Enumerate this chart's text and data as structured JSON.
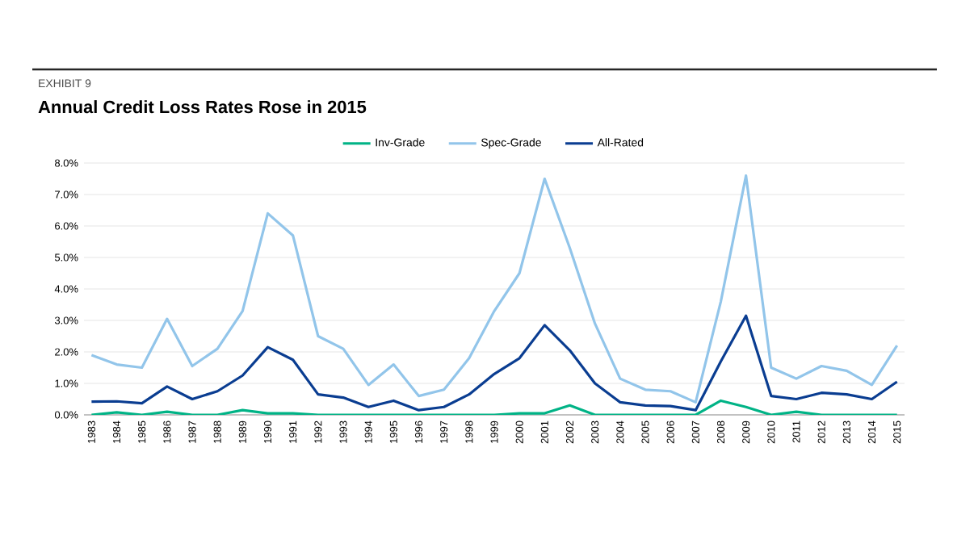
{
  "chart_data": {
    "type": "line",
    "title": "Annual Credit Loss Rates Rose in 2015",
    "annotations": [
      "EXHIBIT 9"
    ],
    "categories": [
      "1983",
      "1984",
      "1985",
      "1986",
      "1987",
      "1988",
      "1989",
      "1990",
      "1991",
      "1992",
      "1993",
      "1994",
      "1995",
      "1996",
      "1997",
      "1998",
      "1999",
      "2000",
      "2001",
      "2002",
      "2003",
      "2004",
      "2005",
      "2006",
      "2007",
      "2008",
      "2009",
      "2010",
      "2011",
      "2012",
      "2013",
      "2014",
      "2015"
    ],
    "series": [
      {
        "name": "Inv-Grade",
        "color": "#00b386",
        "values": [
          0.0,
          0.08,
          0.0,
          0.1,
          0.0,
          0.0,
          0.15,
          0.05,
          0.05,
          0.0,
          0.0,
          0.0,
          0.0,
          0.0,
          0.0,
          0.0,
          0.0,
          0.05,
          0.05,
          0.3,
          0.0,
          0.0,
          0.0,
          0.0,
          0.0,
          0.45,
          0.25,
          0.0,
          0.1,
          0.0,
          0.0,
          0.0,
          0.0
        ]
      },
      {
        "name": "Spec-Grade",
        "color": "#92c5ea",
        "values": [
          1.9,
          1.6,
          1.5,
          3.05,
          1.55,
          2.1,
          3.3,
          6.4,
          5.7,
          2.5,
          2.1,
          0.95,
          1.6,
          0.6,
          0.8,
          1.8,
          3.3,
          4.5,
          7.5,
          5.3,
          2.9,
          1.15,
          0.8,
          0.75,
          0.4,
          3.6,
          7.6,
          1.5,
          1.15,
          1.55,
          1.4,
          0.95,
          2.2
        ]
      },
      {
        "name": "All-Rated",
        "color": "#0a3d91",
        "values": [
          0.42,
          0.43,
          0.37,
          0.9,
          0.5,
          0.75,
          1.25,
          2.15,
          1.75,
          0.65,
          0.55,
          0.25,
          0.45,
          0.15,
          0.25,
          0.65,
          1.3,
          1.8,
          2.85,
          2.05,
          1.0,
          0.4,
          0.3,
          0.28,
          0.15,
          1.7,
          3.15,
          0.6,
          0.5,
          0.7,
          0.65,
          0.5,
          1.05
        ]
      }
    ],
    "ylim": [
      0,
      8
    ],
    "yticks": [
      {
        "value": 0,
        "label": "0.0%"
      },
      {
        "value": 1,
        "label": "1.0%"
      },
      {
        "value": 2,
        "label": "2.0%"
      },
      {
        "value": 3,
        "label": "3.0%"
      },
      {
        "value": 4,
        "label": "4.0%"
      },
      {
        "value": 5,
        "label": "5.0%"
      },
      {
        "value": 6,
        "label": "6.0%"
      },
      {
        "value": 7,
        "label": "7.0%"
      },
      {
        "value": 8,
        "label": "8.0%"
      }
    ],
    "grid": "y",
    "legend": "top",
    "marker": "none",
    "line_style": "solid"
  }
}
